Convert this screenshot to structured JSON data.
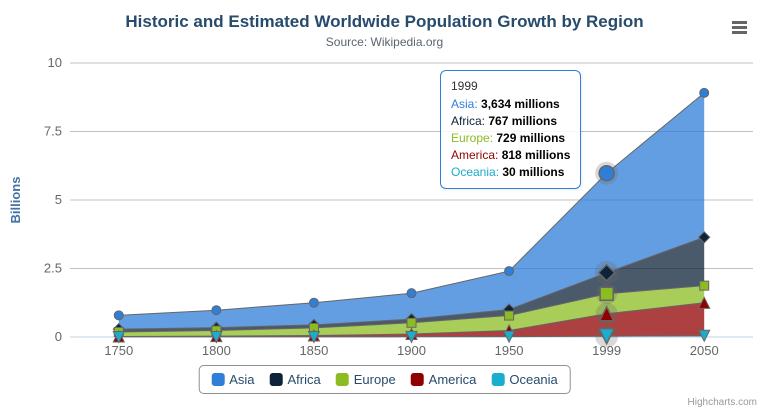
{
  "chart_data": {
    "type": "area",
    "stacking": "normal",
    "title": "Historic and Estimated Worldwide Population Growth by Region",
    "subtitle": "Source: Wikipedia.org",
    "xlabel": "",
    "ylabel": "Billions",
    "ylim": [
      0,
      10
    ],
    "yticks": [
      0,
      2.5,
      5,
      7.5,
      10
    ],
    "ytick_labels": [
      "0",
      "2.5",
      "5",
      "7.5",
      "10"
    ],
    "grid": true,
    "legend_position": "bottom-center",
    "values_unit": "millions",
    "categories": [
      "1750",
      "1800",
      "1850",
      "1900",
      "1950",
      "1999",
      "2050"
    ],
    "series": [
      {
        "name": "Asia",
        "color": "#2f7ed8",
        "marker": "circle",
        "values": [
          502,
          635,
          809,
          947,
          1402,
          3634,
          5268
        ]
      },
      {
        "name": "Africa",
        "color": "#0d233a",
        "marker": "diamond",
        "values": [
          106,
          107,
          111,
          133,
          221,
          767,
          1766
        ]
      },
      {
        "name": "Europe",
        "color": "#8bbc21",
        "marker": "square",
        "values": [
          163,
          203,
          276,
          408,
          547,
          729,
          628
        ]
      },
      {
        "name": "America",
        "color": "#910000",
        "marker": "triangle",
        "values": [
          18,
          31,
          54,
          105,
          223,
          818,
          1201
        ]
      },
      {
        "name": "Oceania",
        "color": "#1aadce",
        "marker": "triangle-down",
        "values": [
          2,
          2,
          2,
          6,
          13,
          30,
          46
        ]
      }
    ],
    "hover_category": "1999"
  },
  "tooltip": {
    "header": "1999",
    "border_color": "#2f7ed8",
    "rows": [
      {
        "series": "Asia",
        "value": "3,634 millions"
      },
      {
        "series": "Africa",
        "value": "767 millions"
      },
      {
        "series": "Europe",
        "value": "729 millions"
      },
      {
        "series": "America",
        "value": "818 millions"
      },
      {
        "series": "Oceania",
        "value": "30 millions"
      }
    ]
  },
  "credits": "Highcharts.com",
  "colors": {
    "title": "#274b6d",
    "axis_title": "#4572A7",
    "axis_labels": "#666666",
    "grid_line": "#C0C0C0",
    "axis_line": "#C0D0E0",
    "series_line": "#666666"
  }
}
